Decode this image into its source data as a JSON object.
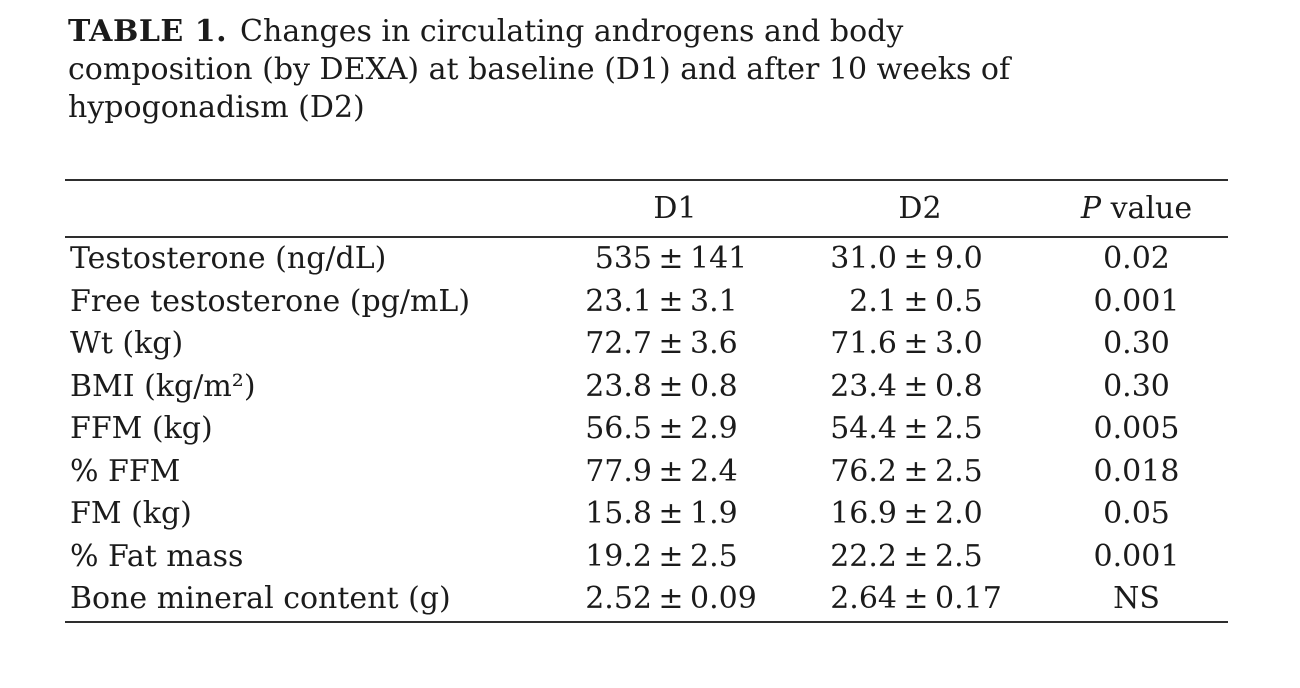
{
  "title": {
    "label": "TABLE 1.",
    "line1": "Changes in circulating androgens and body",
    "line2": "composition (by DEXA) at baseline (D1) and after 10 weeks of",
    "line3": "hypogonadism (D2)"
  },
  "table": {
    "header": {
      "label_col": "",
      "d1": "D1",
      "d2": "D2",
      "p_symbol": "P",
      "p_text": "value"
    },
    "rows": [
      {
        "label": "Testosterone (ng/dL)",
        "d1": "535 ± 141",
        "d2": "31.0 ± 9.0",
        "p": "0.02"
      },
      {
        "label": "Free testosterone (pg/mL)",
        "d1": "23.1 ± 3.1",
        "d2": "2.1 ± 0.5",
        "p": "0.001"
      },
      {
        "label": "Wt (kg)",
        "d1": "72.7 ± 3.6",
        "d2": "71.6 ± 3.0",
        "p": "0.30"
      },
      {
        "label": "BMI (kg/m²)",
        "d1": "23.8 ± 0.8",
        "d2": "23.4 ± 0.8",
        "p": "0.30"
      },
      {
        "label": "FFM (kg)",
        "d1": "56.5 ± 2.9",
        "d2": "54.4 ± 2.5",
        "p": "0.005"
      },
      {
        "label": "% FFM",
        "d1": "77.9 ± 2.4",
        "d2": "76.2 ± 2.5",
        "p": "0.018"
      },
      {
        "label": "FM (kg)",
        "d1": "15.8 ± 1.9",
        "d2": "16.9 ± 2.0",
        "p": "0.05"
      },
      {
        "label": "% Fat mass",
        "d1": "19.2 ± 2.5",
        "d2": "22.2 ± 2.5",
        "p": "0.001"
      },
      {
        "label": "Bone mineral content (g)",
        "d1": "2.52 ± 0.09",
        "d2": "2.64 ± 0.17",
        "p": "NS"
      }
    ]
  }
}
